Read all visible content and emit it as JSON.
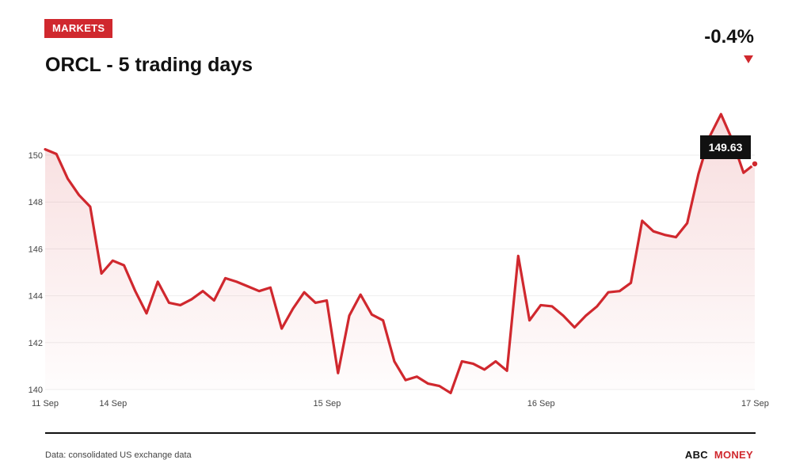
{
  "header": {
    "badge": "MARKETS",
    "title": "ORCL - 5 trading days",
    "change": "-0.4%"
  },
  "footer": {
    "source": "Data: consolidated US exchange data",
    "brand_part1": "ABC",
    "brand_part2": "MONEY"
  },
  "colors": {
    "accent": "#d0282e",
    "tooltip_bg": "#111111",
    "grid": "#eeeeee"
  },
  "chart_data": {
    "type": "area",
    "title": "ORCL - 5 trading days",
    "xlabel": "",
    "ylabel": "",
    "ylim": [
      140,
      150
    ],
    "yticks": [
      140,
      142,
      144,
      146,
      148,
      150
    ],
    "grid": true,
    "legend": "none",
    "date_ticks": [
      {
        "label": "11 Sep",
        "index": 0
      },
      {
        "label": "14 Sep",
        "index": 6
      },
      {
        "label": "15 Sep",
        "index": 25
      },
      {
        "label": "16 Sep",
        "index": 44
      },
      {
        "label": "17 Sep",
        "index": 63
      }
    ],
    "last_value_label": "149.63",
    "series": [
      {
        "values": [
          150.25,
          150.05,
          149.0,
          148.3,
          147.8,
          144.95,
          145.5,
          145.3,
          144.2,
          143.25,
          144.6,
          143.7,
          143.6,
          143.85,
          144.2,
          143.8,
          144.75,
          144.6,
          144.4,
          144.2,
          144.35,
          142.6,
          143.45,
          144.15,
          143.7,
          143.8,
          140.7,
          143.15,
          144.05,
          143.2,
          142.95,
          141.2,
          140.4,
          140.55,
          140.25,
          140.15,
          139.85,
          141.2,
          141.1,
          140.85,
          141.2,
          140.8,
          145.7,
          142.95,
          143.6,
          143.55,
          143.15,
          142.65,
          143.15,
          143.55,
          144.15,
          144.2,
          144.55,
          147.2,
          146.75,
          146.6,
          146.5,
          147.1,
          149.2,
          150.8,
          151.75,
          150.65,
          149.25,
          149.63
        ]
      }
    ]
  }
}
